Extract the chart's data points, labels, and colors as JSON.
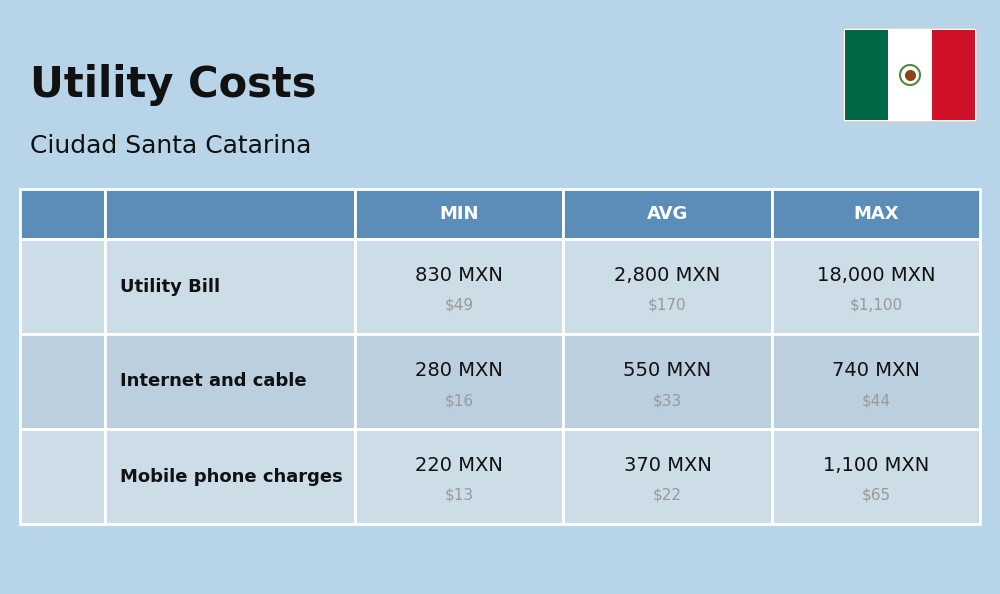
{
  "title": "Utility Costs",
  "subtitle": "Ciudad Santa Catarina",
  "background_color": "#b8d4e8",
  "header_bg_color": "#5b8db8",
  "header_text_color": "#ffffff",
  "row_bg_color_even": "#ccdde8",
  "row_bg_color_odd": "#bccfdf",
  "cell_border_color": "#ffffff",
  "col_headers": [
    "MIN",
    "AVG",
    "MAX"
  ],
  "rows": [
    {
      "label": "Utility Bill",
      "values_mxn": [
        "830 MXN",
        "2,800 MXN",
        "18,000 MXN"
      ],
      "values_usd": [
        "$49",
        "$170",
        "$1,100"
      ]
    },
    {
      "label": "Internet and cable",
      "values_mxn": [
        "280 MXN",
        "550 MXN",
        "740 MXN"
      ],
      "values_usd": [
        "$16",
        "$33",
        "$44"
      ]
    },
    {
      "label": "Mobile phone charges",
      "values_mxn": [
        "220 MXN",
        "370 MXN",
        "1,100 MXN"
      ],
      "values_usd": [
        "$13",
        "$22",
        "$65"
      ]
    }
  ],
  "title_fontsize": 30,
  "subtitle_fontsize": 18,
  "header_fontsize": 13,
  "label_fontsize": 13,
  "value_fontsize": 14,
  "usd_fontsize": 11,
  "text_dark": "#111111",
  "text_gray": "#999999",
  "flag_green": "#006847",
  "flag_white": "#ffffff",
  "flag_red": "#ce1126"
}
